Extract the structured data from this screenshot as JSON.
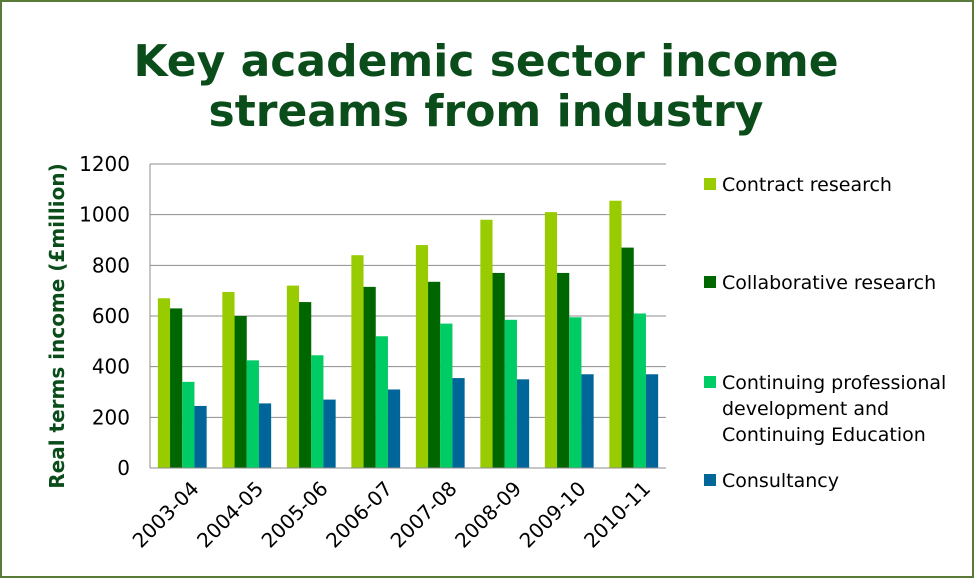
{
  "chart_data": {
    "type": "bar",
    "title": [
      "Key academic sector income",
      "streams from industry"
    ],
    "ylabel": "Real terms income  (£million)",
    "xlabel": "",
    "ylim": [
      0,
      1200
    ],
    "yticks": [
      0,
      200,
      400,
      600,
      800,
      1000,
      1200
    ],
    "grid": true,
    "legend_position": "right",
    "categories": [
      "2003-04",
      "2004-05",
      "2005-06",
      "2006-07",
      "2007-08",
      "2008-09",
      "2009-10",
      "2010-11"
    ],
    "series": [
      {
        "name": "Contract research",
        "legend_lines": [
          "Contract research"
        ],
        "color": "#99cc00",
        "values": [
          670,
          695,
          720,
          840,
          880,
          980,
          1010,
          1055
        ]
      },
      {
        "name": "Collaborative research",
        "legend_lines": [
          "Collaborative research"
        ],
        "color": "#006600",
        "values": [
          630,
          600,
          655,
          715,
          735,
          770,
          770,
          870
        ]
      },
      {
        "name": "Continuing professional development and Continuing Education",
        "legend_lines": [
          "Continuing professional",
          "development and",
          "Continuing Education"
        ],
        "color": "#00cc66",
        "values": [
          340,
          425,
          445,
          520,
          570,
          585,
          595,
          610
        ]
      },
      {
        "name": "Consultancy",
        "legend_lines": [
          "Consultancy"
        ],
        "color": "#006699",
        "values": [
          245,
          255,
          270,
          310,
          355,
          350,
          370,
          370
        ]
      }
    ]
  }
}
